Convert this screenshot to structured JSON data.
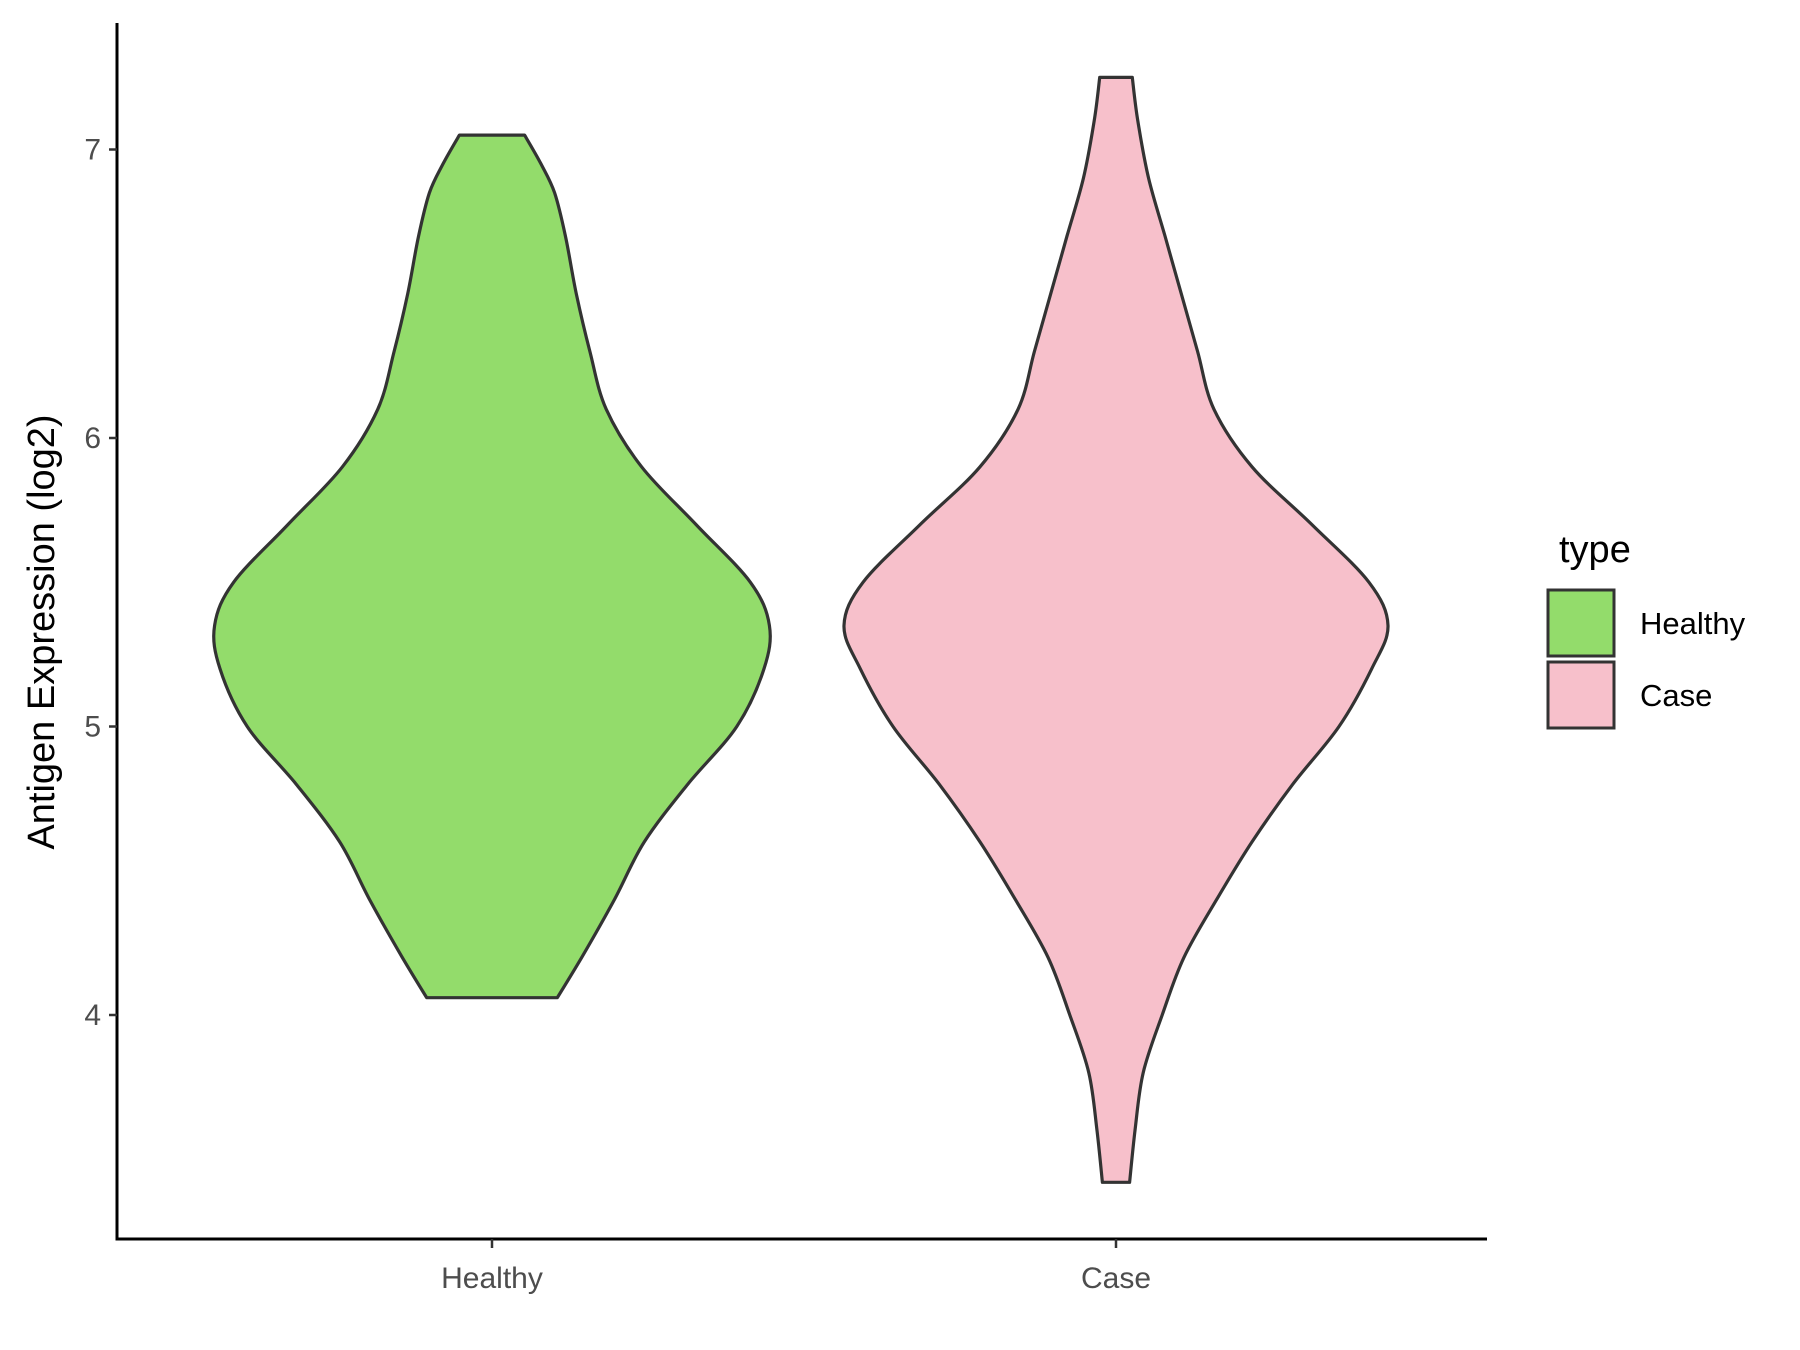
{
  "chart_data": {
    "type": "violin",
    "title": "",
    "xlabel": "",
    "ylabel": "Antigen Expression (log2)",
    "ylim": [
      3.3,
      7.45
    ],
    "yticks": [
      4,
      5,
      6,
      7
    ],
    "categories": [
      "Healthy",
      "Case"
    ],
    "grid": false,
    "legend": {
      "title": "type",
      "position": "right",
      "entries": [
        {
          "label": "Healthy",
          "color": "#93dc6b"
        },
        {
          "label": "Case",
          "color": "#f7c0cb"
        }
      ]
    },
    "series": [
      {
        "name": "Healthy",
        "color": "#93dc6b",
        "min": 4.06,
        "max": 7.05,
        "density_profile": [
          [
            4.06,
            0.24
          ],
          [
            4.2,
            0.33
          ],
          [
            4.4,
            0.45
          ],
          [
            4.6,
            0.56
          ],
          [
            4.8,
            0.72
          ],
          [
            5.0,
            0.9
          ],
          [
            5.2,
            1.0
          ],
          [
            5.35,
            1.02
          ],
          [
            5.5,
            0.95
          ],
          [
            5.7,
            0.75
          ],
          [
            5.9,
            0.55
          ],
          [
            6.1,
            0.42
          ],
          [
            6.3,
            0.36
          ],
          [
            6.5,
            0.31
          ],
          [
            6.7,
            0.27
          ],
          [
            6.85,
            0.23
          ],
          [
            6.95,
            0.18
          ],
          [
            7.05,
            0.12
          ]
        ]
      },
      {
        "name": "Case",
        "color": "#f7c0cb",
        "min": 3.42,
        "max": 7.25,
        "density_profile": [
          [
            3.42,
            0.05
          ],
          [
            3.6,
            0.07
          ],
          [
            3.8,
            0.1
          ],
          [
            4.0,
            0.17
          ],
          [
            4.2,
            0.25
          ],
          [
            4.4,
            0.37
          ],
          [
            4.6,
            0.5
          ],
          [
            4.8,
            0.65
          ],
          [
            5.0,
            0.82
          ],
          [
            5.2,
            0.94
          ],
          [
            5.35,
            1.0
          ],
          [
            5.5,
            0.93
          ],
          [
            5.7,
            0.72
          ],
          [
            5.9,
            0.5
          ],
          [
            6.1,
            0.36
          ],
          [
            6.3,
            0.3
          ],
          [
            6.5,
            0.24
          ],
          [
            6.7,
            0.18
          ],
          [
            6.9,
            0.12
          ],
          [
            7.1,
            0.08
          ],
          [
            7.25,
            0.06
          ]
        ]
      }
    ]
  }
}
